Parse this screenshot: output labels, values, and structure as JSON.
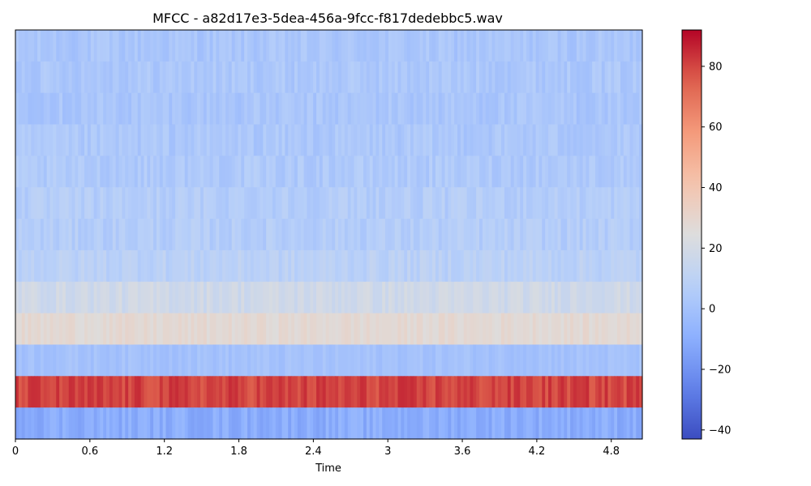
{
  "chart_data": {
    "type": "heatmap",
    "title": "MFCC - a82d17e3-5dea-456a-9fcc-f817dedebbc5.wav",
    "xlabel": "Time",
    "ylabel": "",
    "colormap": "coolwarm",
    "xlim": [
      0,
      5.05
    ],
    "x_ticks": [
      {
        "value": 0,
        "label": "0"
      },
      {
        "value": 0.6,
        "label": "0.6"
      },
      {
        "value": 1.2,
        "label": "1.2"
      },
      {
        "value": 1.8,
        "label": "1.8"
      },
      {
        "value": 2.4,
        "label": "2.4"
      },
      {
        "value": 3.0,
        "label": "3"
      },
      {
        "value": 3.6,
        "label": "3.6"
      },
      {
        "value": 4.2,
        "label": "4.2"
      },
      {
        "value": 4.8,
        "label": "4.8"
      }
    ],
    "n_frames": 200,
    "coefficients_top_to_bottom": [
      {
        "index": 12,
        "mean": 2,
        "spread": 4
      },
      {
        "index": 11,
        "mean": 3,
        "spread": 4
      },
      {
        "index": 10,
        "mean": 2,
        "spread": 4
      },
      {
        "index": 9,
        "mean": 3,
        "spread": 4
      },
      {
        "index": 8,
        "mean": 4,
        "spread": 4
      },
      {
        "index": 7,
        "mean": 6,
        "spread": 4
      },
      {
        "index": 6,
        "mean": 6,
        "spread": 4
      },
      {
        "index": 5,
        "mean": 9,
        "spread": 4
      },
      {
        "index": 4,
        "mean": 18,
        "spread": 4
      },
      {
        "index": 3,
        "mean": 28,
        "spread": 3
      },
      {
        "index": 2,
        "mean": 0,
        "spread": 3
      },
      {
        "index": 1,
        "mean": 80,
        "spread": 5
      },
      {
        "index": 0,
        "mean": -10,
        "spread": 5
      }
    ],
    "colorbar": {
      "vmin": -43,
      "vmax": 92,
      "ticks": [
        {
          "value": -40,
          "label": "−40"
        },
        {
          "value": -20,
          "label": "−20"
        },
        {
          "value": 0,
          "label": "0"
        },
        {
          "value": 20,
          "label": "20"
        },
        {
          "value": 40,
          "label": "40"
        },
        {
          "value": 60,
          "label": "60"
        },
        {
          "value": 80,
          "label": "80"
        }
      ]
    }
  }
}
